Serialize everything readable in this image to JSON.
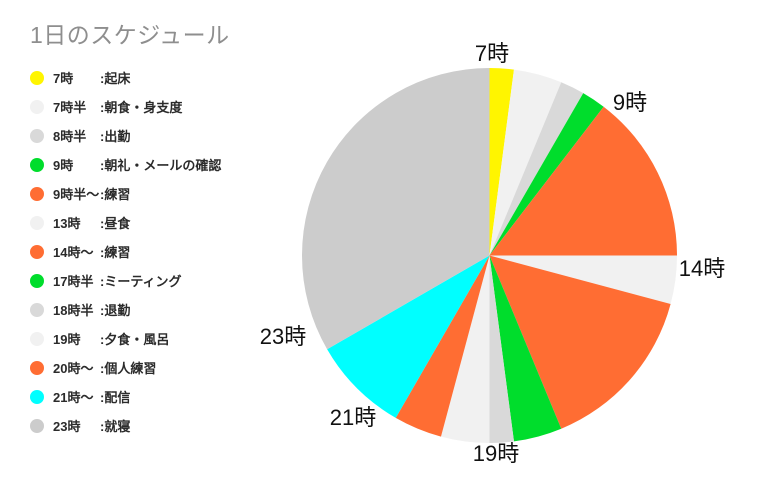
{
  "title": "1日のスケジュール",
  "legend": {
    "items": [
      {
        "time": "7時",
        "activity": ":起床",
        "color": "#FFF500"
      },
      {
        "time": "7時半",
        "activity": ":朝食・身支度",
        "color": "#F1F1F1"
      },
      {
        "time": "8時半",
        "activity": ":出勤",
        "color": "#D9D9D9"
      },
      {
        "time": "9時",
        "activity": ":朝礼・メールの確認",
        "color": "#00DD2C"
      },
      {
        "time": "9時半〜",
        "activity": ":練習",
        "color": "#FF6D33"
      },
      {
        "time": "13時",
        "activity": ":昼食",
        "color": "#F1F1F1"
      },
      {
        "time": "14時〜",
        "activity": ":練習",
        "color": "#FF6D33"
      },
      {
        "time": "17時半",
        "activity": ":ミーティング",
        "color": "#00DD2C"
      },
      {
        "time": "18時半",
        "activity": ":退勤",
        "color": "#D9D9D9"
      },
      {
        "time": "19時",
        "activity": ":夕食・風呂",
        "color": "#F1F1F1"
      },
      {
        "time": "20時〜",
        "activity": ":個人練習",
        "color": "#FF6D33"
      },
      {
        "time": "21時〜",
        "activity": ":配信",
        "color": "#00FFFF"
      },
      {
        "time": "23時",
        "activity": ":就寝",
        "color": "#CCCCCC"
      }
    ]
  },
  "chart_data": {
    "type": "pie",
    "title": "1日のスケジュール",
    "day_start": "7:00",
    "clockwise_from_top": true,
    "total_minutes": 1440,
    "slices": [
      {
        "label": "起床",
        "start": "7:00",
        "end": "7:30",
        "minutes": 30,
        "color": "#FFF500"
      },
      {
        "label": "朝食・身支度",
        "start": "7:30",
        "end": "8:30",
        "minutes": 60,
        "color": "#F1F1F1"
      },
      {
        "label": "出勤",
        "start": "8:30",
        "end": "9:00",
        "minutes": 30,
        "color": "#D9D9D9"
      },
      {
        "label": "朝礼・メールの確認",
        "start": "9:00",
        "end": "9:30",
        "minutes": 30,
        "color": "#00DD2C"
      },
      {
        "label": "練習",
        "start": "9:30",
        "end": "13:00",
        "minutes": 210,
        "color": "#FF6D33"
      },
      {
        "label": "昼食",
        "start": "13:00",
        "end": "14:00",
        "minutes": 60,
        "color": "#F1F1F1"
      },
      {
        "label": "練習",
        "start": "14:00",
        "end": "17:30",
        "minutes": 210,
        "color": "#FF6D33"
      },
      {
        "label": "ミーティング",
        "start": "17:30",
        "end": "18:30",
        "minutes": 60,
        "color": "#00DD2C"
      },
      {
        "label": "退勤",
        "start": "18:30",
        "end": "19:00",
        "minutes": 30,
        "color": "#D9D9D9"
      },
      {
        "label": "夕食・風呂",
        "start": "19:00",
        "end": "20:00",
        "minutes": 60,
        "color": "#F1F1F1"
      },
      {
        "label": "個人練習",
        "start": "20:00",
        "end": "21:00",
        "minutes": 60,
        "color": "#FF6D33"
      },
      {
        "label": "配信",
        "start": "21:00",
        "end": "23:00",
        "minutes": 120,
        "color": "#00FFFF"
      },
      {
        "label": "就寝",
        "start": "23:00",
        "end": "7:00",
        "minutes": 480,
        "color": "#CCCCCC"
      }
    ],
    "axis_labels": [
      {
        "text": "7時"
      },
      {
        "text": "9時"
      },
      {
        "text": "14時"
      },
      {
        "text": "19時"
      },
      {
        "text": "21時"
      },
      {
        "text": "23時"
      }
    ]
  }
}
